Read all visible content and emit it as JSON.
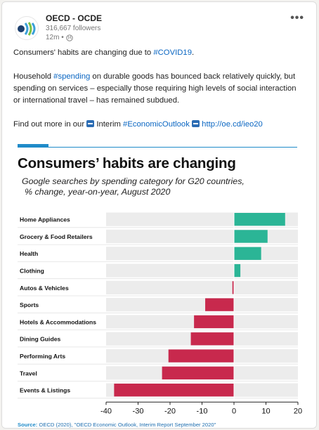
{
  "post": {
    "author": "OECD - OCDE",
    "followers": "316,667 followers",
    "time": "12m •",
    "more_label": "•••",
    "line1_prefix": "Consumers' habits are changing due to ",
    "line1_tag": "#COVID19",
    "line1_suffix": ".",
    "para2_prefix": "Household ",
    "para2_tag": "#spending",
    "para2_suffix": " on durable goods has bounced back relatively quickly, but spending on services – especially those requiring high levels of social interaction or international travel – has remained subdued.",
    "para3_prefix": "Find out more in our ",
    "para3_interim": " Interim ",
    "para3_tag": "#EconomicOutlook",
    "para3_link": "http://oe.cd/ieo20"
  },
  "chart_data": {
    "type": "bar",
    "orientation": "horizontal",
    "title": "Consumers’ habits are changing",
    "subtitle_line1": "Google searches by spending category for G20 countries,",
    "subtitle_line2": "% change, year-on-year, August 2020",
    "categories": [
      "Home Appliances",
      "Grocery & Food Retailers",
      "Health",
      "Clothing",
      "Autos & Vehicles",
      "Sports",
      "Hotels & Accommodations",
      "Dining Guides",
      "Performing Arts",
      "Travel",
      "Events & Listings"
    ],
    "values": [
      16,
      10.5,
      8.5,
      2,
      -0.5,
      -9,
      -12.5,
      -13.5,
      -20.5,
      -22.5,
      -37.5
    ],
    "xlim": [
      -40,
      20
    ],
    "xticks": [
      -40,
      -30,
      -20,
      -10,
      0,
      10,
      20
    ],
    "positive_color": "#2bb596",
    "negative_color": "#c8294d",
    "track_color": "#ececec",
    "source_label": "Source:",
    "source_text": "OECD (2020), \"OECD Economic Outlook, Interim Report September 2020\""
  }
}
